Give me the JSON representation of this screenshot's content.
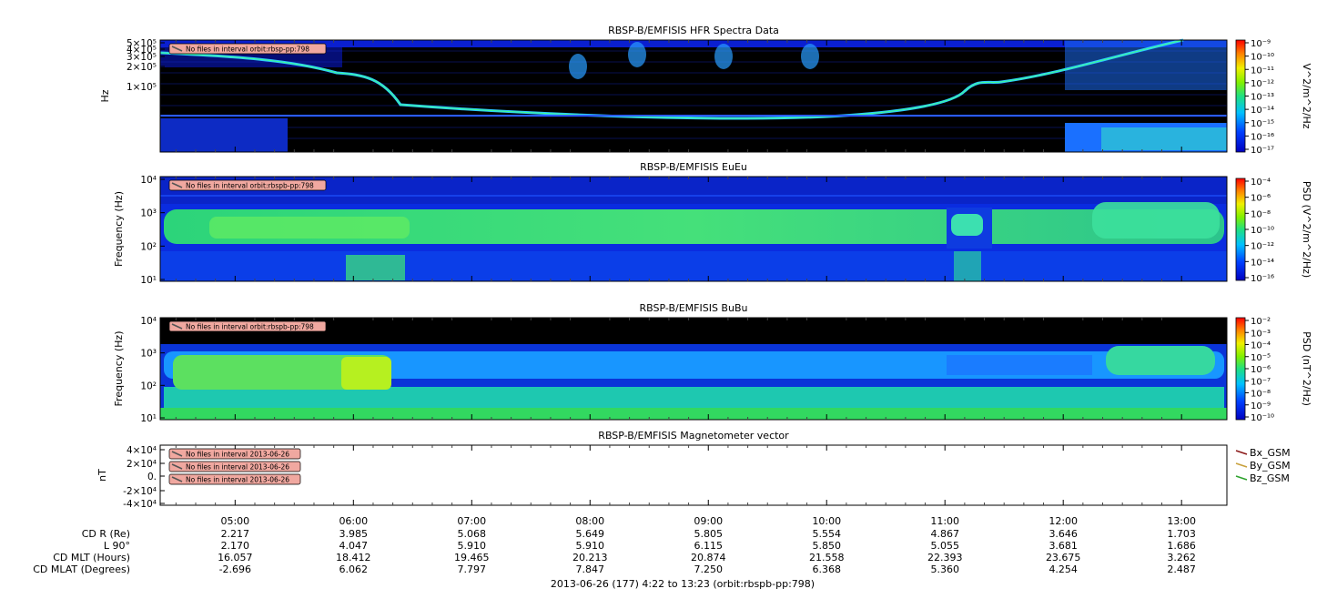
{
  "chart_data": [
    {
      "type": "heatmap",
      "title": "RBSP-B/EMFISIS  HFR Spectra Data",
      "ylabel": "Hz",
      "yscale": "log",
      "y_tick_labels": [
        "5×10⁵",
        "4×10⁵",
        "3×10⁵",
        "2×10⁵",
        "1×10⁵"
      ],
      "colorbar_label": "V^2/m^2/Hz",
      "colorbar_ticks": [
        "10⁻⁹",
        "10⁻¹⁰",
        "10⁻¹¹",
        "10⁻¹²",
        "10⁻¹³",
        "10⁻¹⁴",
        "10⁻¹⁵",
        "10⁻¹⁶",
        "10⁻¹⁷"
      ],
      "annotation": "No files in interval orbit:rbsp-pp:798"
    },
    {
      "type": "heatmap",
      "title": "RBSP-B/EMFISIS  EuEu",
      "ylabel": "Frequency (Hz)",
      "yscale": "log",
      "y_tick_labels": [
        "10⁴",
        "10³",
        "10²",
        "10¹"
      ],
      "colorbar_label": "PSD (V^2/m^2/Hz)",
      "colorbar_ticks": [
        "10⁻⁴",
        "10⁻⁶",
        "10⁻⁸",
        "10⁻¹⁰",
        "10⁻¹²",
        "10⁻¹⁴",
        "10⁻¹⁶"
      ],
      "annotation": "No files in interval orbit:rbspb-pp:798"
    },
    {
      "type": "heatmap",
      "title": "RBSP-B/EMFISIS  BuBu",
      "ylabel": "Frequency (Hz)",
      "yscale": "log",
      "y_tick_labels": [
        "10⁴",
        "10³",
        "10²",
        "10¹"
      ],
      "colorbar_label": "PSD (nT^2/Hz)",
      "colorbar_ticks": [
        "10⁻²",
        "10⁻³",
        "10⁻⁴",
        "10⁻⁵",
        "10⁻⁶",
        "10⁻⁷",
        "10⁻⁸",
        "10⁻⁹",
        "10⁻¹⁰"
      ],
      "annotation": "No files in interval orbit:rbspb-pp:798"
    },
    {
      "type": "line",
      "title": "RBSP-B/EMFISIS  Magnetometer vector",
      "ylabel": "nT",
      "y_tick_labels": [
        "4×10⁴",
        "2×10⁴",
        "0.",
        "-2×10⁴",
        "-4×10⁴"
      ],
      "ylim": [
        -40000,
        40000
      ],
      "legend_position": "right",
      "series": [
        {
          "name": "Bx_GSM",
          "color": "#8b1a1a",
          "values": []
        },
        {
          "name": "By_GSM",
          "color": "#c8a03c",
          "values": []
        },
        {
          "name": "Bz_GSM",
          "color": "#2fa32f",
          "values": []
        }
      ],
      "annotations": [
        "No files in interval 2013-06-26",
        "No files in interval 2013-06-26",
        "No files in interval 2013-06-26"
      ]
    }
  ],
  "x_axis": {
    "time_range": [
      "04:22",
      "13:23"
    ],
    "ticks": [
      "05:00",
      "06:00",
      "07:00",
      "08:00",
      "09:00",
      "10:00",
      "11:00",
      "12:00",
      "13:00"
    ],
    "footer": "2013-06-26 (177) 4:22 to 13:23 (orbit:rbspb-pp:798)"
  },
  "ephemeris": [
    {
      "label": "CD R (Re)",
      "values": [
        "2.217",
        "3.985",
        "5.068",
        "5.649",
        "5.805",
        "5.554",
        "4.867",
        "3.646",
        "1.703"
      ]
    },
    {
      "label": "L 90°",
      "values": [
        "2.170",
        "4.047",
        "5.910",
        "5.910",
        "6.115",
        "5.850",
        "5.055",
        "3.681",
        "1.686"
      ]
    },
    {
      "label": "CD MLT (Hours)",
      "values": [
        "16.057",
        "18.412",
        "19.465",
        "20.213",
        "20.874",
        "21.558",
        "22.393",
        "23.675",
        "3.262"
      ]
    },
    {
      "label": "CD MLAT (Degrees)",
      "values": [
        "-2.696",
        "6.062",
        "7.797",
        "7.847",
        "7.250",
        "6.368",
        "5.360",
        "4.254",
        "2.487"
      ]
    }
  ]
}
